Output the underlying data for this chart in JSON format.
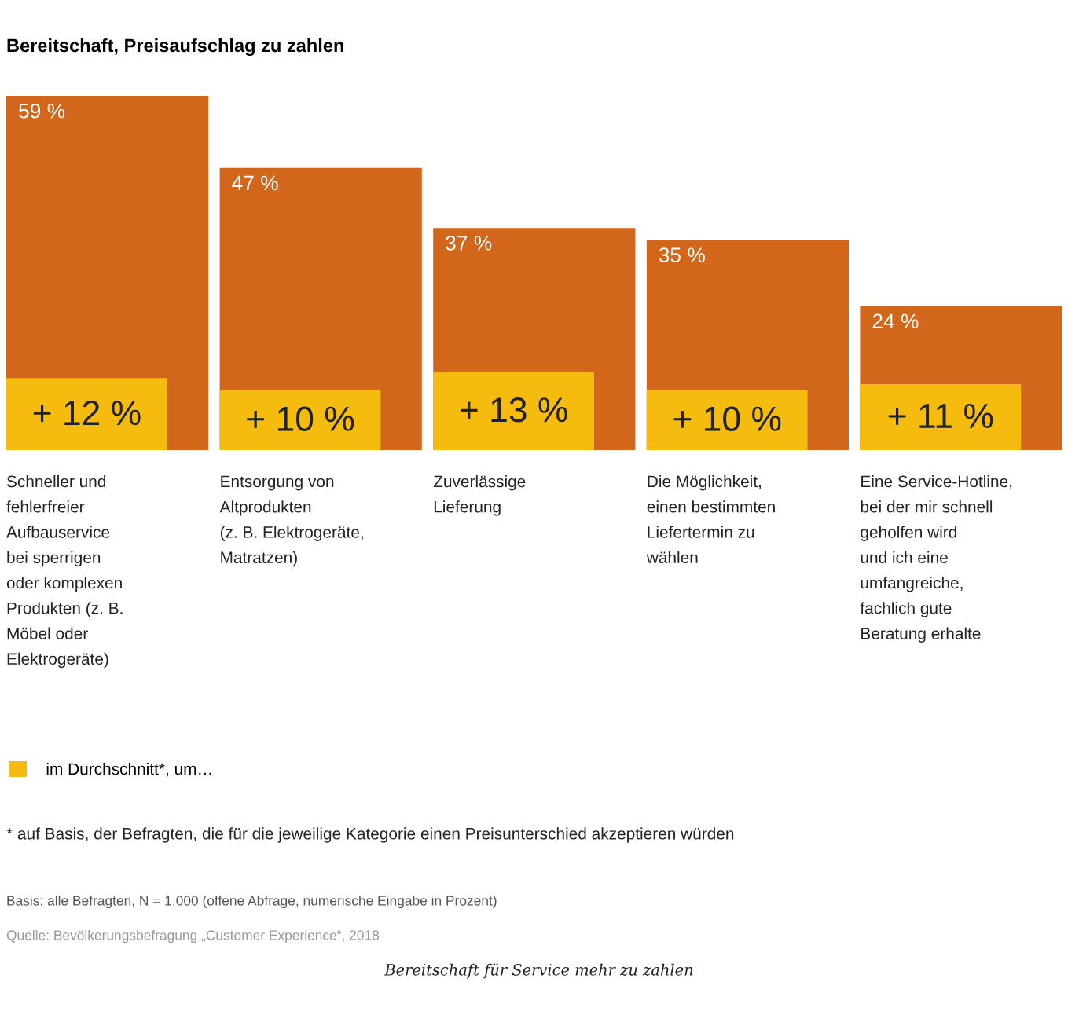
{
  "chart_data": {
    "type": "bar",
    "title": "Bereitschaft, Preisaufschlag zu zahlen",
    "categories": [
      "Schneller und\nfehlerfreier\nAufbauservice\nbei sperrigen\noder komplexen\nProdukten (z. B.\nMöbel oder\nElektrogeräte)",
      "Entsorgung von\nAltprodukten\n(z. B. Elektrogeräte,\nMatratzen)",
      "Zuverlässige\nLieferung",
      "Die Möglichkeit,\neinen bestimmten\nLiefertermin zu\nwählen",
      "Eine Service-Hotline,\nbei der mir schnell\ngeholfen wird\nund ich eine\numfangreiche,\nfachlich gute\nBeratung erhalte"
    ],
    "series": [
      {
        "color": "#d2661a",
        "values": [
          59,
          47,
          37,
          35,
          24
        ],
        "value_labels": [
          "59 %",
          "47 %",
          "37 %",
          "35 %",
          "24 %"
        ]
      },
      {
        "name": "im Durchschnitt*, um…",
        "color": "#f5bc0f",
        "values": [
          12,
          10,
          13,
          10,
          11
        ],
        "value_labels": [
          "+ 12 %",
          "+ 10 %",
          "+ 13 %",
          "+ 10 %",
          "+ 11 %"
        ]
      }
    ],
    "ylim": [
      0,
      59
    ],
    "stacked": false,
    "legend": "bottom",
    "tick_labels": "x",
    "annotations": [
      "* auf Basis, der Befragten, die für die jeweilige Kategorie einen Preisunterschied akzeptieren würden",
      "Basis: alle Befragten, N = 1.000 (offene Abfrage, numerische Eingabe in Prozent)",
      "Quelle: Bevölkerungsbefragung „Customer Experience“, 2018",
      "Bereitschaft für Service mehr zu zahlen"
    ]
  }
}
